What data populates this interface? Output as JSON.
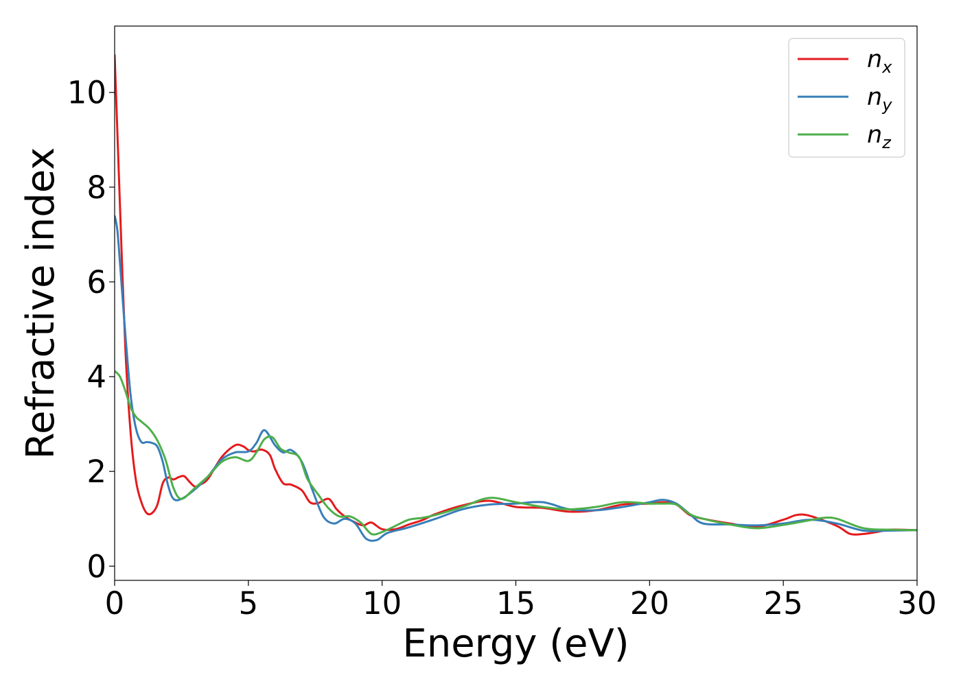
{
  "chart_data": {
    "type": "line",
    "xlabel": "Energy (eV)",
    "ylabel": "Refractive index",
    "xlim": [
      0,
      30
    ],
    "ylim": [
      -0.3,
      11.4
    ],
    "xticks": [
      0,
      5,
      10,
      15,
      20,
      25,
      30
    ],
    "yticks": [
      0,
      2,
      4,
      6,
      8,
      10
    ],
    "grid": false,
    "legend_position": "top-right",
    "series": [
      {
        "name": "n",
        "subscript": "x",
        "color": "#e41a1c",
        "x": [
          0,
          0.1,
          0.2,
          0.4,
          0.6,
          0.8,
          1.0,
          1.2,
          1.4,
          1.6,
          1.8,
          2.0,
          2.2,
          2.4,
          2.6,
          2.8,
          3.0,
          3.2,
          3.5,
          4.0,
          4.5,
          4.8,
          5.0,
          5.2,
          5.5,
          5.8,
          6.0,
          6.3,
          6.6,
          7.0,
          7.3,
          7.6,
          8.0,
          8.3,
          8.6,
          9.0,
          9.3,
          9.6,
          10.0,
          10.5,
          11.0,
          11.5,
          12.0,
          13.0,
          14.0,
          15.0,
          16.0,
          17.0,
          18.0,
          19.0,
          20.0,
          20.5,
          21.0,
          21.5,
          22.0,
          23.0,
          24.0,
          25.0,
          25.5,
          26.0,
          27.0,
          27.5,
          28.0,
          28.5,
          29.0,
          30.0
        ],
        "y": [
          10.8,
          9.2,
          7.6,
          4.6,
          2.8,
          1.8,
          1.35,
          1.12,
          1.12,
          1.3,
          1.75,
          1.87,
          1.83,
          1.88,
          1.9,
          1.78,
          1.68,
          1.72,
          1.85,
          2.3,
          2.55,
          2.53,
          2.45,
          2.42,
          2.46,
          2.35,
          2.05,
          1.75,
          1.72,
          1.6,
          1.35,
          1.33,
          1.42,
          1.2,
          1.05,
          0.92,
          0.86,
          0.92,
          0.78,
          0.78,
          0.88,
          0.97,
          1.1,
          1.28,
          1.38,
          1.25,
          1.23,
          1.15,
          1.18,
          1.3,
          1.32,
          1.35,
          1.3,
          1.08,
          1.0,
          0.9,
          0.83,
          0.98,
          1.08,
          1.06,
          0.85,
          0.68,
          0.68,
          0.72,
          0.77,
          0.76
        ]
      },
      {
        "name": "n",
        "subscript": "y",
        "color": "#377eb8",
        "x": [
          0,
          0.1,
          0.2,
          0.4,
          0.6,
          0.8,
          1.0,
          1.2,
          1.4,
          1.6,
          1.8,
          2.0,
          2.2,
          2.5,
          3.0,
          3.5,
          4.0,
          4.5,
          5.0,
          5.3,
          5.6,
          6.0,
          6.3,
          6.6,
          7.0,
          7.4,
          7.8,
          8.2,
          8.6,
          9.0,
          9.4,
          9.8,
          10.2,
          11.0,
          12.0,
          13.0,
          14.0,
          15.0,
          16.0,
          17.0,
          18.0,
          19.0,
          20.0,
          20.5,
          21.0,
          21.5,
          22.0,
          23.0,
          24.0,
          25.0,
          26.0,
          27.0,
          28.0,
          29.0,
          30.0
        ],
        "y": [
          7.4,
          7.1,
          6.4,
          4.9,
          3.6,
          2.9,
          2.62,
          2.62,
          2.6,
          2.52,
          2.2,
          1.7,
          1.42,
          1.42,
          1.62,
          1.9,
          2.25,
          2.4,
          2.42,
          2.6,
          2.87,
          2.55,
          2.4,
          2.45,
          2.2,
          1.6,
          1.05,
          0.9,
          1.0,
          0.9,
          0.58,
          0.55,
          0.7,
          0.82,
          1.0,
          1.2,
          1.3,
          1.32,
          1.35,
          1.2,
          1.18,
          1.25,
          1.35,
          1.4,
          1.32,
          1.1,
          0.9,
          0.88,
          0.86,
          0.9,
          0.98,
          0.9,
          0.75,
          0.75,
          0.76
        ]
      },
      {
        "name": "n",
        "subscript": "z",
        "color": "#4daf4a",
        "x": [
          0,
          0.2,
          0.4,
          0.6,
          0.8,
          1.0,
          1.3,
          1.6,
          1.9,
          2.2,
          2.5,
          3.0,
          3.5,
          4.0,
          4.5,
          5.0,
          5.3,
          5.6,
          5.9,
          6.2,
          6.5,
          6.9,
          7.2,
          7.6,
          8.0,
          8.4,
          8.8,
          9.2,
          9.6,
          10.0,
          10.5,
          11.0,
          11.5,
          12.0,
          13.0,
          14.0,
          15.0,
          16.0,
          17.0,
          18.0,
          19.0,
          20.0,
          20.5,
          21.0,
          21.5,
          22.0,
          23.0,
          24.0,
          25.0,
          26.0,
          26.5,
          27.0,
          28.0,
          29.0,
          30.0
        ],
        "y": [
          4.12,
          4.0,
          3.7,
          3.35,
          3.15,
          3.05,
          2.9,
          2.65,
          2.25,
          1.65,
          1.42,
          1.65,
          1.9,
          2.2,
          2.3,
          2.22,
          2.4,
          2.68,
          2.72,
          2.48,
          2.4,
          2.3,
          1.85,
          1.52,
          1.22,
          1.05,
          1.05,
          0.92,
          0.68,
          0.72,
          0.85,
          0.98,
          1.02,
          1.08,
          1.25,
          1.44,
          1.35,
          1.25,
          1.2,
          1.25,
          1.35,
          1.32,
          1.32,
          1.3,
          1.1,
          1.0,
          0.88,
          0.8,
          0.87,
          0.97,
          1.02,
          1.0,
          0.8,
          0.77,
          0.76
        ]
      }
    ]
  }
}
